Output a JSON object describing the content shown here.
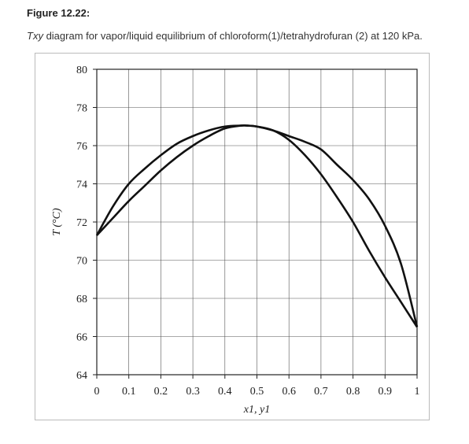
{
  "figure": {
    "label": "Figure 12.22:",
    "caption_italic": "Txy",
    "caption_rest": " diagram for vapor/liquid equilibrium of chloroform(1)/tetrahydrofuran (2) at 120 kPa."
  },
  "chart_data": {
    "type": "line",
    "title": "",
    "xlabel": "x1, y1",
    "ylabel": "T (°C)",
    "xlim": [
      0,
      1
    ],
    "ylim": [
      64,
      80
    ],
    "xticks": [
      "0",
      "0.1",
      "0.2",
      "0.3",
      "0.4",
      "0.5",
      "0.6",
      "0.7",
      "0.8",
      "0.9",
      "1"
    ],
    "yticks": [
      "64",
      "66",
      "68",
      "70",
      "72",
      "74",
      "76",
      "78",
      "80"
    ],
    "grid": true,
    "series": [
      {
        "x": [
          0,
          0.05,
          0.1,
          0.15,
          0.2,
          0.25,
          0.3,
          0.35,
          0.4,
          0.45,
          0.47,
          0.5,
          0.55,
          0.6,
          0.65,
          0.7,
          0.75,
          0.8,
          0.85,
          0.9,
          0.95,
          1
        ],
        "y": [
          71.3,
          72.8,
          74.0,
          74.8,
          75.5,
          76.1,
          76.5,
          76.8,
          77.0,
          77.05,
          77.05,
          77.0,
          76.8,
          76.5,
          76.2,
          75.8,
          75.0,
          74.2,
          73.2,
          71.8,
          69.8,
          66.5
        ]
      },
      {
        "x": [
          0,
          0.05,
          0.1,
          0.15,
          0.2,
          0.25,
          0.3,
          0.35,
          0.4,
          0.45,
          0.47,
          0.5,
          0.55,
          0.6,
          0.65,
          0.7,
          0.75,
          0.8,
          0.85,
          0.9,
          0.95,
          1
        ],
        "y": [
          71.3,
          72.2,
          73.1,
          73.9,
          74.7,
          75.4,
          76.0,
          76.5,
          76.9,
          77.05,
          77.05,
          77.0,
          76.8,
          76.3,
          75.5,
          74.5,
          73.3,
          72.0,
          70.5,
          69.1,
          67.8,
          66.5
        ]
      }
    ]
  }
}
